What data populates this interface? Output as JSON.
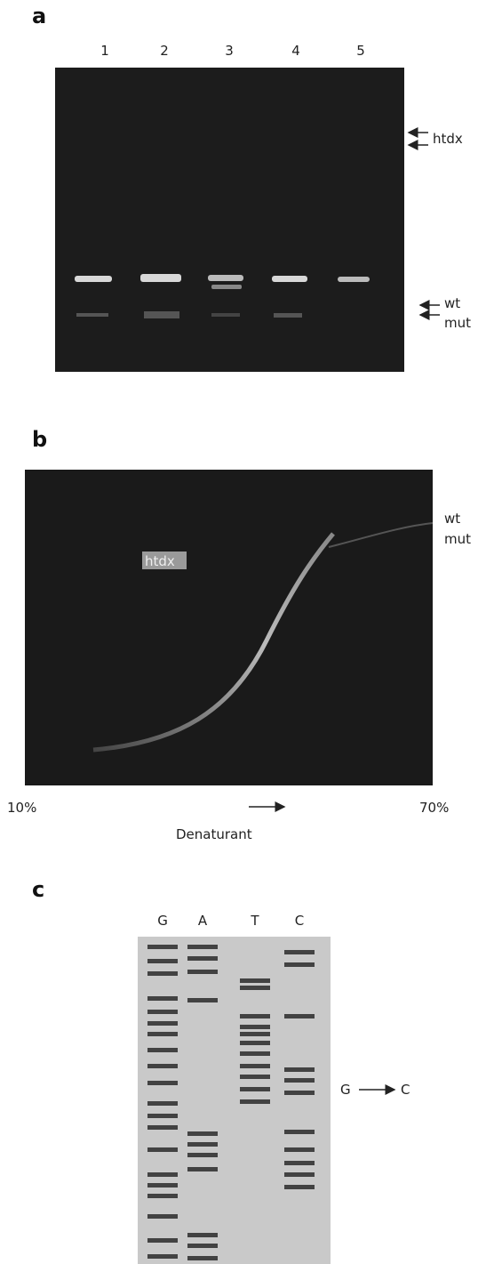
{
  "panel_a": {
    "label": "a",
    "lanes": [
      "1",
      "2",
      "3",
      "4",
      "5"
    ],
    "annotations": [
      "htdx",
      "wt",
      "mut"
    ]
  },
  "panel_b": {
    "label": "b",
    "annotations": [
      "wt",
      "mut",
      "htdx"
    ],
    "axis_start": "10%",
    "axis_end": "70%",
    "axis_label": "Denaturant"
  },
  "panel_c": {
    "label": "c",
    "lanes": [
      "G",
      "A",
      "T",
      "C"
    ],
    "mutation_from": "G",
    "mutation_to": "C"
  }
}
